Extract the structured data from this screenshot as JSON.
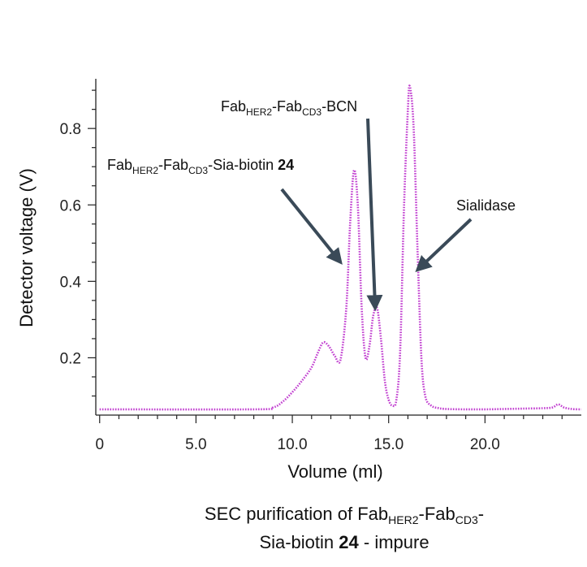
{
  "chart_data": {
    "type": "line",
    "line_style": "dotted",
    "series": [
      {
        "name": "SEC trace",
        "color": "#c13fd0",
        "x": [
          0,
          8.0,
          9.0,
          9.5,
          10.0,
          10.5,
          11.0,
          11.3,
          11.6,
          11.9,
          12.2,
          12.5,
          12.8,
          13.0,
          13.2,
          13.4,
          13.6,
          13.8,
          14.0,
          14.2,
          14.4,
          14.6,
          14.8,
          15.0,
          15.2,
          15.4,
          15.6,
          15.8,
          16.0,
          16.1,
          16.3,
          16.5,
          16.7,
          16.9,
          17.2,
          17.6,
          18.0,
          19.0,
          20.0,
          21.0,
          22.0,
          23.0,
          23.5,
          23.8,
          24.1,
          24.5,
          25.0
        ],
        "y": [
          0.065,
          0.065,
          0.07,
          0.085,
          0.11,
          0.14,
          0.175,
          0.21,
          0.24,
          0.23,
          0.205,
          0.195,
          0.33,
          0.55,
          0.69,
          0.6,
          0.33,
          0.2,
          0.23,
          0.31,
          0.33,
          0.25,
          0.14,
          0.09,
          0.075,
          0.09,
          0.22,
          0.6,
          0.85,
          0.91,
          0.8,
          0.48,
          0.2,
          0.1,
          0.075,
          0.068,
          0.066,
          0.065,
          0.065,
          0.066,
          0.067,
          0.068,
          0.07,
          0.078,
          0.07,
          0.066,
          0.065
        ]
      }
    ],
    "xlim": [
      -0.2,
      25.0
    ],
    "ylim": [
      0.05,
      0.93
    ],
    "xticks": [
      0,
      5,
      10,
      15,
      20
    ],
    "xtick_labels": [
      "0",
      "5.0",
      "10.0",
      "15.0",
      "20.0"
    ],
    "yticks": [
      0.2,
      0.4,
      0.6,
      0.8
    ],
    "ytick_labels": [
      "0.2",
      "0.4",
      "0.6",
      "0.8"
    ],
    "xlabel": "Volume (ml)",
    "ylabel": "Detector voltage (V)",
    "annotations": [
      {
        "id": "bcn",
        "parts": [
          {
            "text": "Fab",
            "style": "normal"
          },
          {
            "text": "HER2",
            "style": "sub"
          },
          {
            "text": "-Fab",
            "style": "normal"
          },
          {
            "text": "CD3",
            "style": "sub"
          },
          {
            "text": "-BCN",
            "style": "normal"
          }
        ],
        "points_to": [
          14.3,
          0.33
        ]
      },
      {
        "id": "sia-biotin",
        "parts": [
          {
            "text": "Fab",
            "style": "normal"
          },
          {
            "text": "HER2",
            "style": "sub"
          },
          {
            "text": "-Fab",
            "style": "normal"
          },
          {
            "text": "CD3",
            "style": "sub"
          },
          {
            "text": "-Sia-biotin ",
            "style": "normal"
          },
          {
            "text": "24",
            "style": "bold"
          }
        ],
        "points_to": [
          12.5,
          0.45
        ]
      },
      {
        "id": "sialidase",
        "parts": [
          {
            "text": "Sialidase",
            "style": "normal"
          }
        ],
        "points_to": [
          16.5,
          0.43
        ]
      }
    ]
  },
  "caption": {
    "line1_parts": [
      {
        "text": "SEC purification of Fab",
        "style": "normal"
      },
      {
        "text": "HER2",
        "style": "sub"
      },
      {
        "text": "-Fab",
        "style": "normal"
      },
      {
        "text": "CD3",
        "style": "sub"
      },
      {
        "text": "-",
        "style": "normal"
      }
    ],
    "line2_parts": [
      {
        "text": "Sia-biotin ",
        "style": "normal"
      },
      {
        "text": "24",
        "style": "bold"
      },
      {
        "text": " - impure",
        "style": "normal"
      }
    ]
  },
  "colors": {
    "trace": "#c13fd0",
    "arrow": "#3a4a58",
    "axis": "#222222"
  }
}
